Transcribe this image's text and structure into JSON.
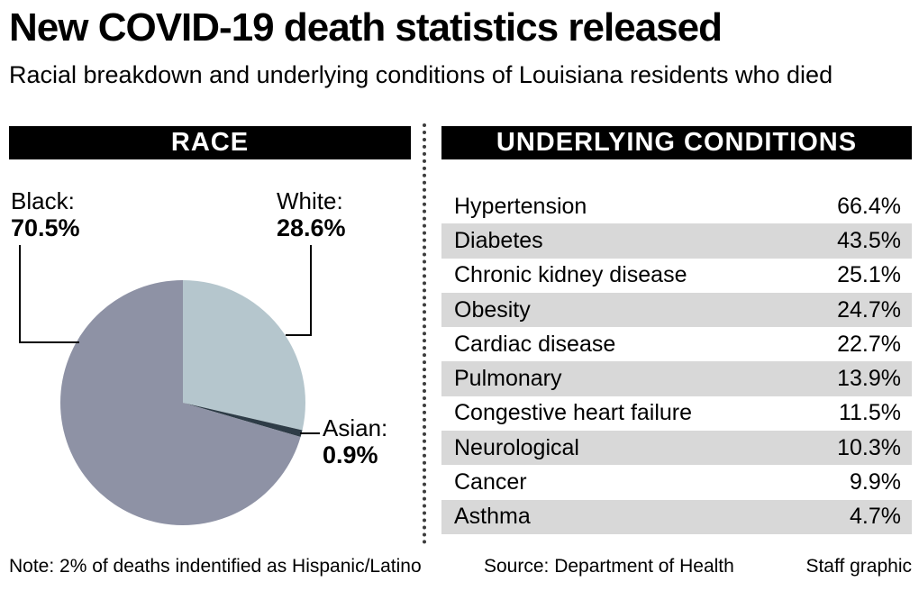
{
  "page": {
    "title": "New COVID-19 death statistics released",
    "subtitle": "Racial breakdown and underlying conditions of Louisiana residents who died",
    "footer": {
      "note": "Note: 2% of deaths indentified as Hispanic/Latino",
      "source": "Source: Department of Health",
      "credit": "Staff graphic"
    }
  },
  "race_panel": {
    "header": "RACE",
    "labels": {
      "black_name": "Black:",
      "black_value": "70.5%",
      "white_name": "White:",
      "white_value": "28.6%",
      "asian_name": "Asian:",
      "asian_value": "0.9%"
    }
  },
  "conditions_panel": {
    "header": "UNDERLYING CONDITIONS"
  },
  "chart_data": [
    {
      "type": "pie",
      "title": "RACE",
      "slices": [
        {
          "label": "White",
          "value": 28.6,
          "color": "#b5c6cd"
        },
        {
          "label": "Asian",
          "value": 0.9,
          "color": "#2e3c47"
        },
        {
          "label": "Black",
          "value": 70.5,
          "color": "#8e92a5"
        }
      ],
      "start_angle_deg": 0,
      "direction": "clockwise",
      "note": "Note: 2% of deaths indentified as Hispanic/Latino"
    },
    {
      "type": "table",
      "title": "UNDERLYING CONDITIONS",
      "rows": [
        [
          "Hypertension",
          "66.4%"
        ],
        [
          "Diabetes",
          "43.5%"
        ],
        [
          "Chronic kidney disease",
          "25.1%"
        ],
        [
          "Obesity",
          "24.7%"
        ],
        [
          "Cardiac disease",
          "22.7%"
        ],
        [
          "Pulmonary",
          "13.9%"
        ],
        [
          "Congestive heart failure",
          "11.5%"
        ],
        [
          "Neurological",
          "10.3%"
        ],
        [
          "Cancer",
          "9.9%"
        ],
        [
          "Asthma",
          "4.7%"
        ]
      ],
      "row_stripe_colors": [
        "#ffffff",
        "#d8d8d8"
      ]
    }
  ]
}
